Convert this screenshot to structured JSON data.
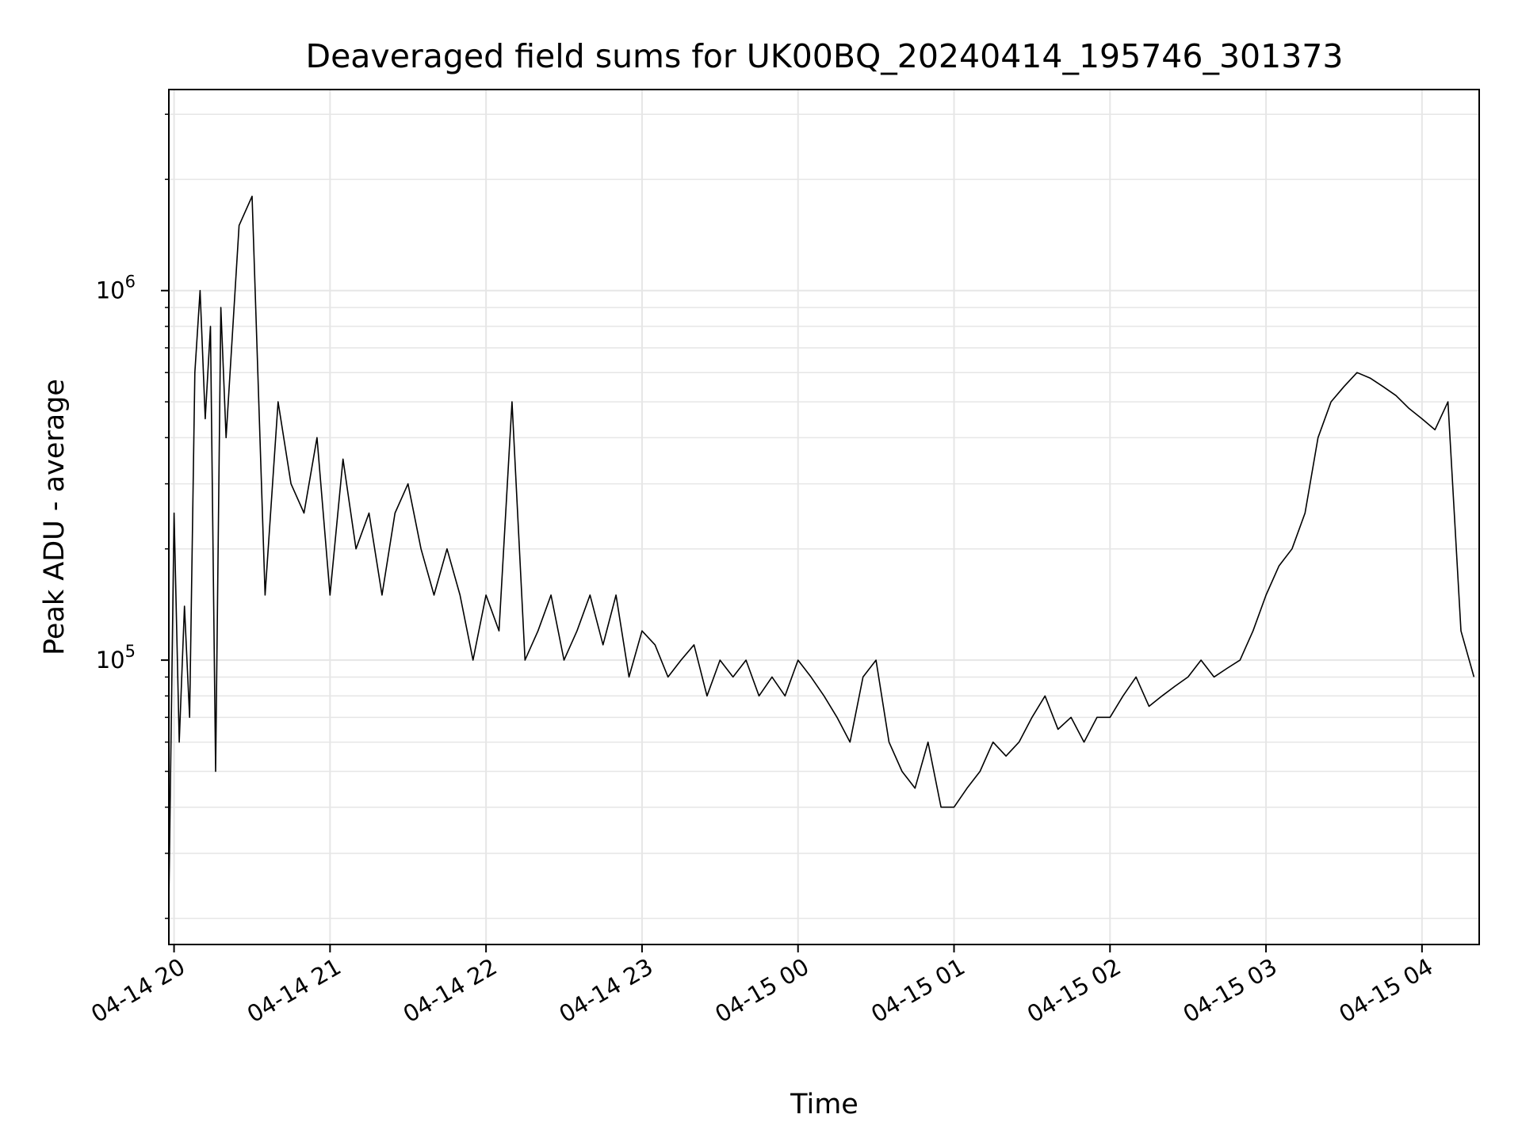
{
  "chart_data": {
    "type": "line",
    "title": "Deaveraged field sums for UK00BQ_20240414_195746_301373",
    "xlabel": "Time",
    "ylabel": "Peak ADU - average",
    "yscale": "log",
    "ylim": [
      17000,
      3500000
    ],
    "xlim": [
      "2024-04-14 19:58",
      "2024-04-15 04:22"
    ],
    "x_ticks": [
      "04-14 20",
      "04-14 21",
      "04-14 22",
      "04-14 23",
      "04-15 00",
      "04-15 01",
      "04-15 02",
      "04-15 03",
      "04-15 04"
    ],
    "y_ticks": [
      {
        "value": 100000,
        "base": "10",
        "exp": "5"
      },
      {
        "value": 1000000,
        "base": "10",
        "exp": "6"
      }
    ],
    "grid": true,
    "line_color": "#000000",
    "grid_color": "#e6e6e6",
    "series": [
      {
        "x": [
          "2024-04-14 19:58",
          "2024-04-14 20:00",
          "2024-04-14 20:02",
          "2024-04-14 20:04",
          "2024-04-14 20:06",
          "2024-04-14 20:08",
          "2024-04-14 20:10",
          "2024-04-14 20:12",
          "2024-04-14 20:14",
          "2024-04-14 20:16",
          "2024-04-14 20:18",
          "2024-04-14 20:20",
          "2024-04-14 20:25",
          "2024-04-14 20:30",
          "2024-04-14 20:35",
          "2024-04-14 20:40",
          "2024-04-14 20:45",
          "2024-04-14 20:50",
          "2024-04-14 20:55",
          "2024-04-14 21:00",
          "2024-04-14 21:05",
          "2024-04-14 21:10",
          "2024-04-14 21:15",
          "2024-04-14 21:20",
          "2024-04-14 21:25",
          "2024-04-14 21:30",
          "2024-04-14 21:35",
          "2024-04-14 21:40",
          "2024-04-14 21:45",
          "2024-04-14 21:50",
          "2024-04-14 21:55",
          "2024-04-14 22:00",
          "2024-04-14 22:05",
          "2024-04-14 22:10",
          "2024-04-14 22:15",
          "2024-04-14 22:20",
          "2024-04-14 22:25",
          "2024-04-14 22:30",
          "2024-04-14 22:35",
          "2024-04-14 22:40",
          "2024-04-14 22:45",
          "2024-04-14 22:50",
          "2024-04-14 22:55",
          "2024-04-14 23:00",
          "2024-04-14 23:05",
          "2024-04-14 23:10",
          "2024-04-14 23:15",
          "2024-04-14 23:20",
          "2024-04-14 23:25",
          "2024-04-14 23:30",
          "2024-04-14 23:35",
          "2024-04-14 23:40",
          "2024-04-14 23:45",
          "2024-04-14 23:50",
          "2024-04-14 23:55",
          "2024-04-15 00:00",
          "2024-04-15 00:05",
          "2024-04-15 00:10",
          "2024-04-15 00:15",
          "2024-04-15 00:20",
          "2024-04-15 00:25",
          "2024-04-15 00:30",
          "2024-04-15 00:35",
          "2024-04-15 00:40",
          "2024-04-15 00:45",
          "2024-04-15 00:50",
          "2024-04-15 00:55",
          "2024-04-15 01:00",
          "2024-04-15 01:05",
          "2024-04-15 01:10",
          "2024-04-15 01:15",
          "2024-04-15 01:20",
          "2024-04-15 01:25",
          "2024-04-15 01:30",
          "2024-04-15 01:35",
          "2024-04-15 01:40",
          "2024-04-15 01:45",
          "2024-04-15 01:50",
          "2024-04-15 01:55",
          "2024-04-15 02:00",
          "2024-04-15 02:05",
          "2024-04-15 02:10",
          "2024-04-15 02:15",
          "2024-04-15 02:20",
          "2024-04-15 02:25",
          "2024-04-15 02:30",
          "2024-04-15 02:35",
          "2024-04-15 02:40",
          "2024-04-15 02:45",
          "2024-04-15 02:50",
          "2024-04-15 02:55",
          "2024-04-15 03:00",
          "2024-04-15 03:05",
          "2024-04-15 03:10",
          "2024-04-15 03:15",
          "2024-04-15 03:20",
          "2024-04-15 03:25",
          "2024-04-15 03:30",
          "2024-04-15 03:35",
          "2024-04-15 03:40",
          "2024-04-15 03:45",
          "2024-04-15 03:50",
          "2024-04-15 03:55",
          "2024-04-15 04:00",
          "2024-04-15 04:05",
          "2024-04-15 04:10",
          "2024-04-15 04:15",
          "2024-04-15 04:20"
        ],
        "y": [
          22000,
          250000,
          60000,
          140000,
          70000,
          600000,
          1000000,
          450000,
          800000,
          50000,
          900000,
          400000,
          1500000,
          1800000,
          150000,
          500000,
          300000,
          250000,
          400000,
          150000,
          350000,
          200000,
          250000,
          150000,
          250000,
          300000,
          200000,
          150000,
          200000,
          150000,
          100000,
          150000,
          120000,
          500000,
          100000,
          120000,
          150000,
          100000,
          120000,
          150000,
          110000,
          150000,
          90000,
          120000,
          110000,
          90000,
          100000,
          110000,
          80000,
          100000,
          90000,
          100000,
          80000,
          90000,
          80000,
          100000,
          90000,
          80000,
          70000,
          60000,
          90000,
          100000,
          60000,
          50000,
          45000,
          60000,
          40000,
          40000,
          45000,
          50000,
          60000,
          55000,
          60000,
          70000,
          80000,
          65000,
          70000,
          60000,
          70000,
          70000,
          80000,
          90000,
          75000,
          80000,
          85000,
          90000,
          100000,
          90000,
          95000,
          100000,
          120000,
          150000,
          180000,
          200000,
          250000,
          400000,
          500000,
          550000,
          600000,
          580000,
          550000,
          520000,
          480000,
          450000,
          420000,
          500000,
          120000,
          90000
        ]
      }
    ]
  }
}
